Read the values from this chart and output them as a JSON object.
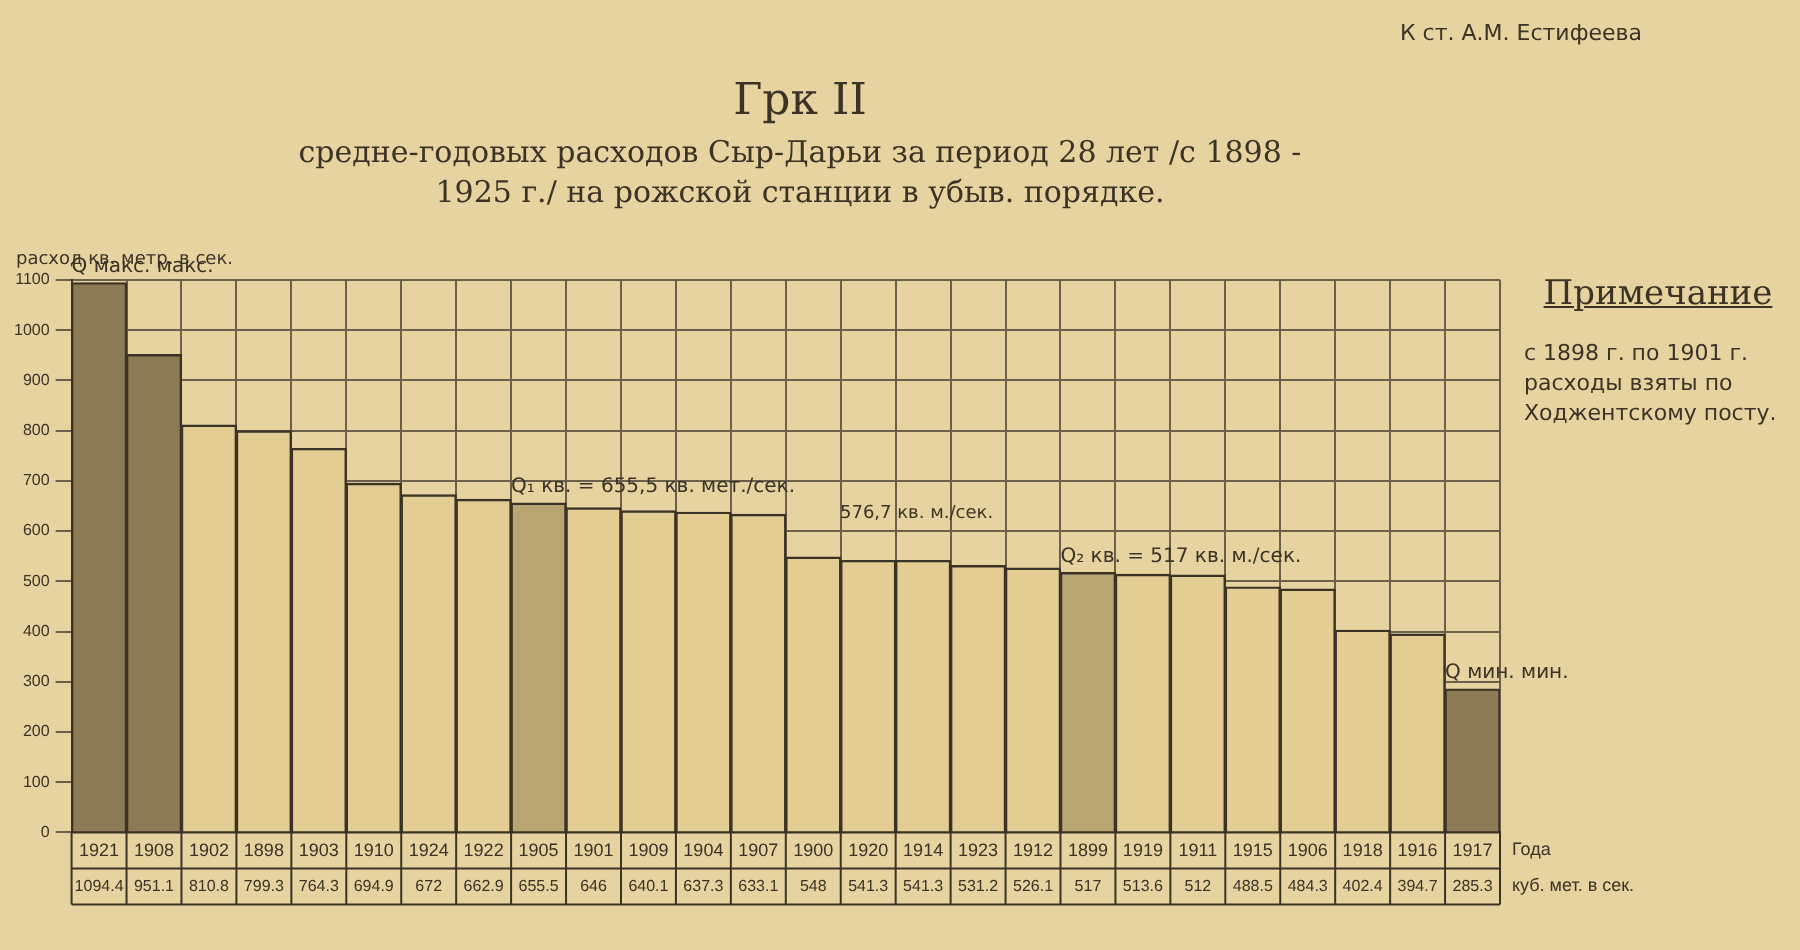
{
  "chart_data": {
    "type": "bar",
    "title": "Грк II",
    "subtitle": "средне-годовых расходов Сыр-Дарьи за период 28 лет /с 1898 - 1925 г./ на рожской станции в убыв. порядке.",
    "ylabel": "расход кв. метр. в сек.",
    "xlabel": "Года",
    "categories": [
      "1921",
      "1908",
      "1902",
      "1898",
      "1903",
      "1910",
      "1924",
      "1922",
      "1905",
      "1901",
      "1909",
      "1904",
      "1907",
      "1900",
      "1920",
      "1914",
      "1923",
      "1912",
      "1899",
      "1919",
      "1911",
      "1915",
      "1906",
      "1918",
      "1916",
      "1917"
    ],
    "values": [
      1094.4,
      951.1,
      810.8,
      799.3,
      764.3,
      694.9,
      672,
      662.9,
      655.5,
      646,
      640.1,
      637.3,
      633.1,
      548,
      541.3,
      541.3,
      531.2,
      526.1,
      517,
      513.6,
      512,
      488.5,
      484.3,
      402.4,
      394.7,
      285.3
    ],
    "value_labels": [
      "1094.4",
      "951.1",
      "810.8",
      "799.3",
      "764.3",
      "694.9",
      "672",
      "662.9",
      "655.5",
      "646",
      "640.1",
      "637.3",
      "633.1",
      "548",
      "541.3",
      "541.3",
      "531.2",
      "526.1",
      "517",
      "513.6",
      "512",
      "488.5",
      "484.3",
      "402.4",
      "394.7",
      "285.3"
    ],
    "colors": [
      "#8c7b55",
      "#8c7b55",
      "#e3cd93",
      "#e3cd93",
      "#e3cd93",
      "#e3cd93",
      "#e3cd93",
      "#e3cd93",
      "#b9a572",
      "#e3cd93",
      "#e3cd93",
      "#e3cd93",
      "#e3cd93",
      "#e3cd93",
      "#e3cd93",
      "#e3cd93",
      "#e3cd93",
      "#e3cd93",
      "#b9a572",
      "#e3cd93",
      "#e3cd93",
      "#e3cd93",
      "#e3cd93",
      "#e3cd93",
      "#e3cd93",
      "#8c7b55"
    ],
    "ylim": [
      0,
      1100
    ],
    "yticks": [
      0,
      100,
      200,
      300,
      400,
      500,
      600,
      700,
      800,
      900,
      1000,
      1100
    ],
    "grid": true,
    "legend": false,
    "annotations": [
      {
        "text": "Q макс. макс.",
        "x": "1921",
        "y": 1094.4
      },
      {
        "text": "Q₁ кв. = 655,5 кв. мет./сек.",
        "x": "1905",
        "y": 655.5
      },
      {
        "text": "Q₂ кв. = 517 кв. м./сек.",
        "x": "1899",
        "y": 517
      },
      {
        "text": "Q мин. мин.",
        "x": "1917",
        "y": 285.3
      },
      "куб. мет. в сек.",
      "К ст. А.М. Естифеева",
      "Примечание",
      "с 1898 г. по 1901 г. расходы взяты по Ходжентскому посту.",
      "576,7 кв. м./сек."
    ]
  }
}
